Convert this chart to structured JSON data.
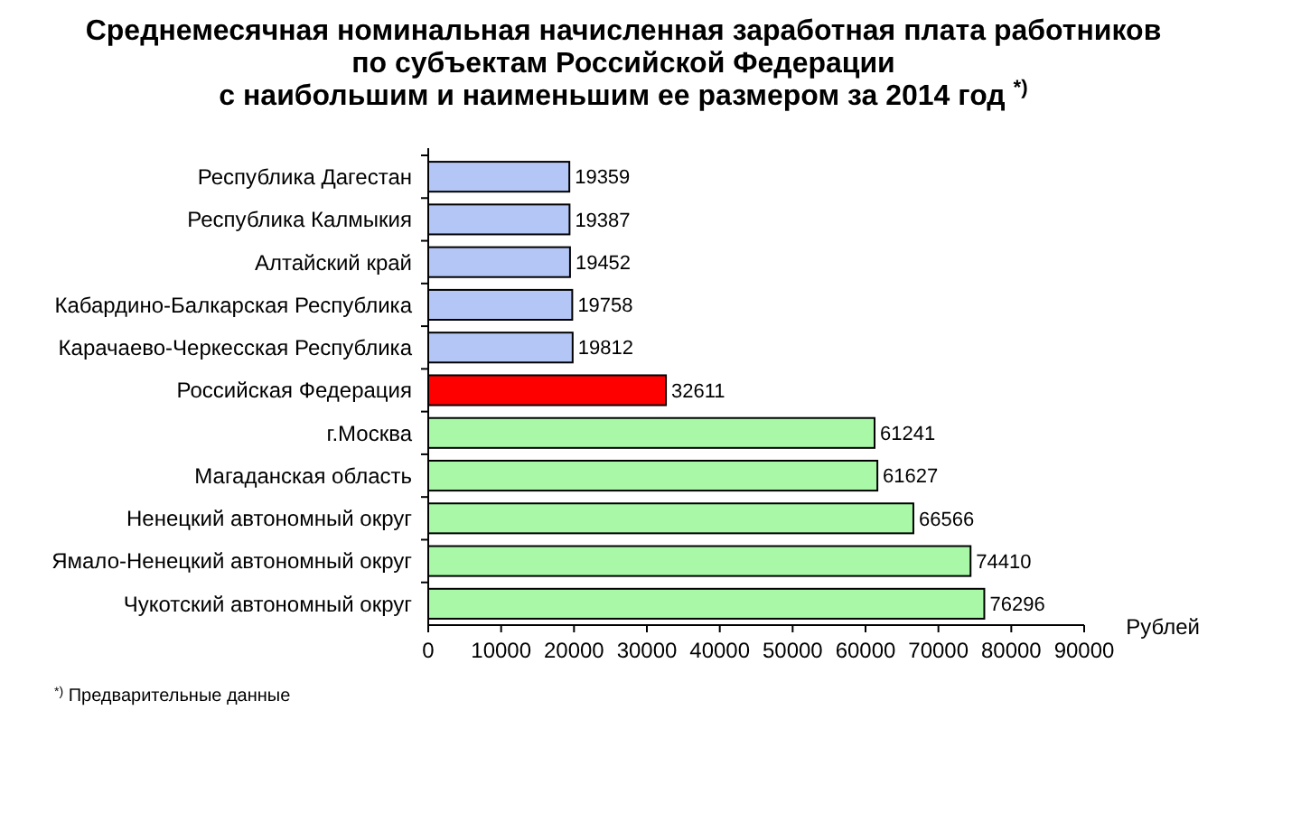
{
  "chart_data": {
    "type": "bar",
    "orientation": "horizontal",
    "title": "Среднемесячная номинальная начисленная заработная плата работников\nпо субъектам Российской Федерации\nс наибольшим и наименьшим ее размером за 2014 год $^{*)}$",
    "categories": [
      "Республика Дагестан",
      "Республика Калмыкия",
      "Алтайский край",
      "Кабардино-Балкарская Республика",
      "Карачаево-Черкесская Республика",
      "Российская Федерация",
      "г.Москва",
      "Магаданская область",
      "Ненецкий автономный округ",
      "Ямало-Ненецкий автономный округ",
      "Чукотский автономный округ"
    ],
    "values": [
      19359,
      19387,
      19452,
      19758,
      19812,
      32611,
      61241,
      61627,
      66566,
      74410,
      76296
    ],
    "colors": [
      "#b4c6f6",
      "#b4c6f6",
      "#b4c6f6",
      "#b4c6f6",
      "#b4c6f6",
      "#ff0000",
      "#a8f8a8",
      "#a8f8a8",
      "#a8f8a8",
      "#a8f8a8",
      "#a8f8a8"
    ],
    "xlim": [
      0,
      90000
    ],
    "xticks": [
      0,
      10000,
      20000,
      30000,
      40000,
      50000,
      60000,
      70000,
      80000,
      90000
    ],
    "xlabel": "Рублей",
    "data_labels": true,
    "grid": false,
    "annotations": [
      "$^{*)}$ Предварительные данные"
    ]
  }
}
